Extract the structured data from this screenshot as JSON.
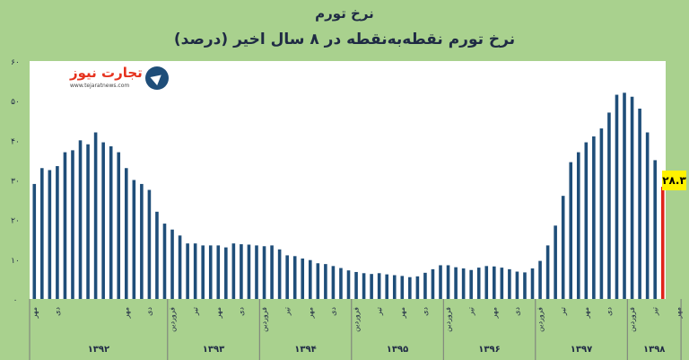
{
  "header": {
    "title": "نرخ تورم",
    "subtitle": "نرخ تورم نقطه‌به‌نقطه در ۸ سال اخیر (درصد)"
  },
  "logo": {
    "brand": "تجارت نیوز",
    "url": "www.tejaratnews.com"
  },
  "chart_data": {
    "type": "bar",
    "ylim": [
      0,
      60
    ],
    "yticks": [
      "۰",
      "۱۰",
      "۲۰",
      "۳۰",
      "۴۰",
      "۵۰",
      "۶۰"
    ],
    "bar_color": "#1f4e79",
    "highlight_color": "#e0241b",
    "values": [
      29,
      33,
      32.5,
      33.5,
      37,
      37.5,
      40,
      39,
      42,
      39.5,
      38.5,
      37,
      33,
      30,
      29,
      27.5,
      22,
      19,
      17.5,
      16,
      14,
      14,
      13.5,
      13.5,
      13.5,
      13,
      14,
      13.8,
      13.7,
      13.5,
      13.3,
      13.5,
      12.5,
      11,
      10.8,
      10.2,
      9.8,
      9,
      8.8,
      8.3,
      7.8,
      7.2,
      6.8,
      6.5,
      6.3,
      6.5,
      6.2,
      6,
      5.8,
      5.5,
      5.7,
      6.6,
      7.5,
      8.5,
      8.5,
      8,
      7.7,
      7.3,
      7.9,
      8.3,
      8.2,
      7.9,
      7.5,
      6.9,
      6.7,
      7.7,
      9.6,
      13.5,
      18.5,
      26,
      34.5,
      37,
      39.5,
      41,
      43,
      47,
      51.5,
      52,
      51,
      48,
      42,
      35,
      28.3
    ],
    "highlight_index": 82,
    "x_tick_labels": [
      {
        "i": 0,
        "label": "مهر"
      },
      {
        "i": 3,
        "label": "دی"
      },
      {
        "i": 12,
        "label": "مهر"
      },
      {
        "i": 15,
        "label": "دی"
      },
      {
        "i": 18,
        "label": "فروردین"
      },
      {
        "i": 21,
        "label": "تیر"
      },
      {
        "i": 24,
        "label": "مهر"
      },
      {
        "i": 27,
        "label": "دی"
      },
      {
        "i": 30,
        "label": "فروردین"
      },
      {
        "i": 33,
        "label": "تیر"
      },
      {
        "i": 36,
        "label": "مهر"
      },
      {
        "i": 39,
        "label": "دی"
      },
      {
        "i": 42,
        "label": "فروردین"
      },
      {
        "i": 45,
        "label": "تیر"
      },
      {
        "i": 48,
        "label": "مهر"
      },
      {
        "i": 51,
        "label": "دی"
      },
      {
        "i": 54,
        "label": "فروردین"
      },
      {
        "i": 57,
        "label": "تیر"
      },
      {
        "i": 60,
        "label": "مهر"
      },
      {
        "i": 63,
        "label": "دی"
      },
      {
        "i": 66,
        "label": "فروردین"
      },
      {
        "i": 69,
        "label": "تیر"
      },
      {
        "i": 72,
        "label": "مهر"
      },
      {
        "i": 75,
        "label": "دی"
      },
      {
        "i": 78,
        "label": "فروردین"
      },
      {
        "i": 81,
        "label": "تیر"
      },
      {
        "i": 84,
        "label": "مهر"
      }
    ],
    "year_groups": [
      {
        "label": "۱۳۹۲",
        "start": 0,
        "end": 17
      },
      {
        "label": "۱۳۹۳",
        "start": 18,
        "end": 29
      },
      {
        "label": "۱۳۹۴",
        "start": 30,
        "end": 41
      },
      {
        "label": "۱۳۹۵",
        "start": 42,
        "end": 53
      },
      {
        "label": "۱۳۹۶",
        "start": 54,
        "end": 65
      },
      {
        "label": "۱۳۹۷",
        "start": 66,
        "end": 77
      },
      {
        "label": "۱۳۹۸",
        "start": 78,
        "end": 84
      }
    ],
    "annotation": "۲۸.۳"
  }
}
